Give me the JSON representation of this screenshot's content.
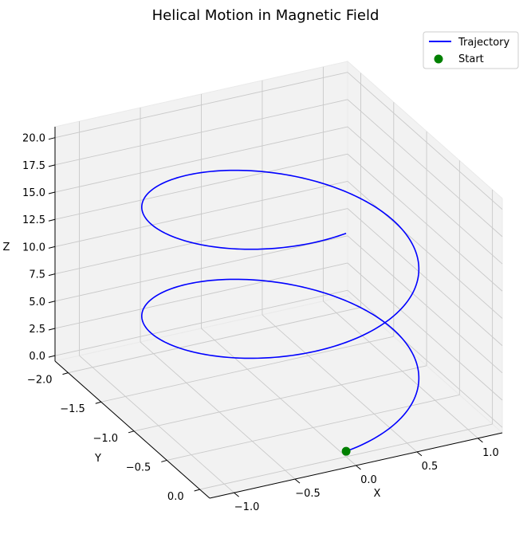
{
  "chart_data": {
    "type": "line3d",
    "title": "Helical Motion in Magnetic Field",
    "xlabel": "X",
    "ylabel": "Y",
    "zlabel": "Z",
    "xlim": [
      -1.2,
      1.2
    ],
    "ylim": [
      -2.2,
      0.15
    ],
    "zlim": [
      -0.5,
      21.0
    ],
    "x_ticks": [
      "1.0",
      "0.5",
      "0.0",
      "−0.5",
      "−1.0"
    ],
    "y_ticks": [
      "0.0",
      "−0.5",
      "−1.0",
      "−1.5",
      "−2.0"
    ],
    "z_ticks": [
      "0.0",
      "2.5",
      "5.0",
      "7.5",
      "10.0",
      "12.5",
      "15.0",
      "17.5",
      "20.0"
    ],
    "grid": true,
    "legend_position": "top-right",
    "series": [
      {
        "name": "Trajectory",
        "kind": "line",
        "color": "#0000ff",
        "helix": {
          "center_x": 0.0,
          "center_y": -1.0,
          "radius": 1.0,
          "turns": 2.0,
          "z_start": 0.0,
          "z_end": 20.0
        }
      },
      {
        "name": "Start",
        "kind": "point",
        "color": "#008000",
        "points": [
          {
            "x": 0.0,
            "y": 0.0,
            "z": 0.0
          }
        ]
      }
    ]
  }
}
